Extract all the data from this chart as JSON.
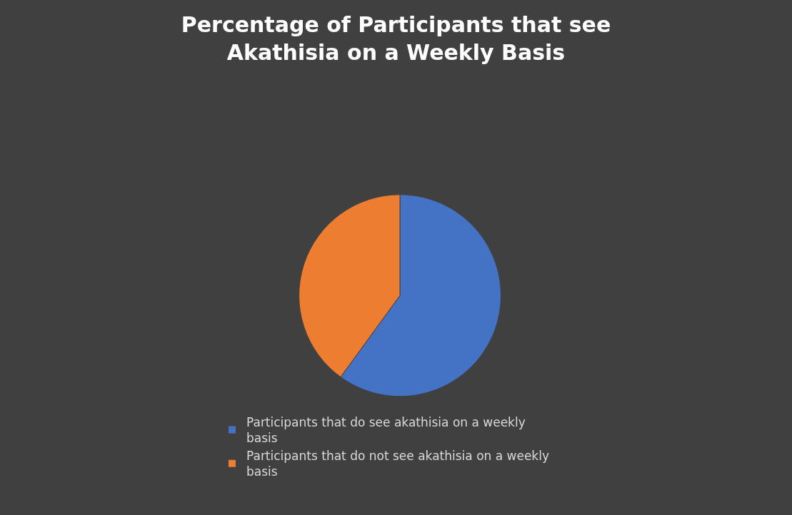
{
  "chart_data": {
    "type": "pie",
    "title": "Percentage of Participants that see Akathisia on a Weekly Basis",
    "categories": [
      "Participants that do see akathisia on a weekly basis",
      "Participants that do not see akathisia on a weekly basis"
    ],
    "values": [
      60,
      40
    ],
    "colors": [
      "#4472c4",
      "#ed7d31"
    ],
    "legend": "bottom"
  }
}
